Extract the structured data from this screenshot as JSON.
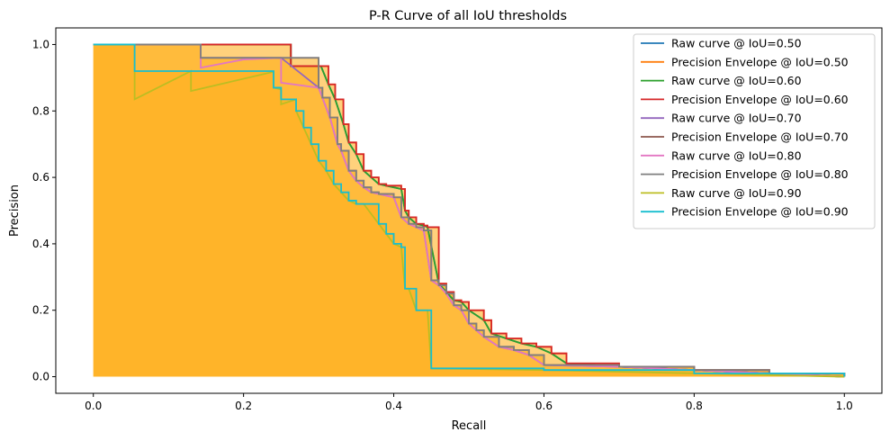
{
  "chart_data": {
    "type": "line",
    "title": "P-R Curve of all IoU thresholds",
    "xlabel": "Recall",
    "ylabel": "Precision",
    "xlim": [
      -0.05,
      1.05
    ],
    "ylim": [
      -0.05,
      1.05
    ],
    "xticks": [
      "0.0",
      "0.2",
      "0.4",
      "0.6",
      "0.8",
      "1.0"
    ],
    "yticks": [
      "0.0",
      "0.2",
      "0.4",
      "0.6",
      "0.8",
      "1.0"
    ],
    "grid": false,
    "legend_position": "top-right",
    "fill_color": "#ffa500",
    "series": [
      {
        "name": "Raw curve @ IoU=0.50",
        "color": "#1f77b4",
        "x": [
          0,
          0.143,
          0.263,
          0.263,
          0.303,
          0.313,
          0.322,
          0.333,
          0.34,
          0.35,
          0.36,
          0.37,
          0.38,
          0.39,
          0.41,
          0.415,
          0.42,
          0.43,
          0.44,
          0.445,
          0.46,
          0.47,
          0.48,
          0.49,
          0.5,
          0.52,
          0.53,
          0.55,
          0.57,
          0.59,
          0.61,
          0.63,
          0.7,
          0.8,
          0.9,
          1.0
        ],
        "y": [
          1.0,
          1.0,
          1.0,
          0.935,
          0.935,
          0.88,
          0.835,
          0.76,
          0.705,
          0.67,
          0.62,
          0.6,
          0.58,
          0.575,
          0.565,
          0.5,
          0.48,
          0.46,
          0.455,
          0.45,
          0.28,
          0.255,
          0.23,
          0.225,
          0.2,
          0.17,
          0.13,
          0.115,
          0.1,
          0.09,
          0.07,
          0.04,
          0.03,
          0.02,
          0.01,
          0.0
        ]
      },
      {
        "name": "Precision Envelope @ IoU=0.50",
        "color": "#ff7f0e",
        "x": [
          0,
          0.143,
          0.263,
          0.263,
          0.303,
          0.313,
          0.322,
          0.333,
          0.34,
          0.35,
          0.36,
          0.37,
          0.38,
          0.39,
          0.41,
          0.415,
          0.42,
          0.43,
          0.44,
          0.445,
          0.46,
          0.47,
          0.48,
          0.49,
          0.5,
          0.52,
          0.53,
          0.55,
          0.57,
          0.59,
          0.61,
          0.63,
          0.7,
          0.8,
          0.9,
          1.0
        ],
        "y": [
          1.0,
          1.0,
          1.0,
          0.935,
          0.935,
          0.88,
          0.835,
          0.76,
          0.705,
          0.67,
          0.62,
          0.6,
          0.58,
          0.575,
          0.565,
          0.5,
          0.48,
          0.46,
          0.455,
          0.45,
          0.28,
          0.255,
          0.23,
          0.225,
          0.2,
          0.17,
          0.13,
          0.115,
          0.1,
          0.09,
          0.07,
          0.04,
          0.03,
          0.02,
          0.01,
          0.0
        ]
      },
      {
        "name": "Raw curve @ IoU=0.60",
        "color": "#2ca02c",
        "x": [
          0,
          0.143,
          0.263,
          0.263,
          0.303,
          0.313,
          0.322,
          0.333,
          0.34,
          0.35,
          0.36,
          0.37,
          0.38,
          0.39,
          0.41,
          0.415,
          0.42,
          0.43,
          0.44,
          0.445,
          0.46,
          0.47,
          0.48,
          0.49,
          0.5,
          0.52,
          0.53,
          0.55,
          0.57,
          0.59,
          0.61,
          0.63,
          0.7,
          0.8,
          0.9,
          1.0
        ],
        "y": [
          1.0,
          1.0,
          1.0,
          0.935,
          0.935,
          0.88,
          0.835,
          0.76,
          0.705,
          0.67,
          0.62,
          0.6,
          0.58,
          0.575,
          0.565,
          0.5,
          0.48,
          0.46,
          0.455,
          0.45,
          0.28,
          0.255,
          0.23,
          0.225,
          0.2,
          0.17,
          0.13,
          0.115,
          0.1,
          0.09,
          0.07,
          0.04,
          0.03,
          0.02,
          0.01,
          0.0
        ]
      },
      {
        "name": "Precision Envelope @ IoU=0.60",
        "color": "#d62728",
        "x": [
          0,
          0.143,
          0.263,
          0.263,
          0.303,
          0.313,
          0.322,
          0.333,
          0.34,
          0.35,
          0.36,
          0.37,
          0.38,
          0.39,
          0.41,
          0.415,
          0.42,
          0.43,
          0.44,
          0.445,
          0.46,
          0.47,
          0.48,
          0.49,
          0.5,
          0.52,
          0.53,
          0.55,
          0.57,
          0.59,
          0.61,
          0.63,
          0.7,
          0.8,
          0.9,
          1.0
        ],
        "y": [
          1.0,
          1.0,
          1.0,
          0.935,
          0.935,
          0.88,
          0.835,
          0.76,
          0.705,
          0.67,
          0.62,
          0.6,
          0.58,
          0.575,
          0.565,
          0.5,
          0.48,
          0.46,
          0.455,
          0.45,
          0.28,
          0.255,
          0.23,
          0.225,
          0.2,
          0.17,
          0.13,
          0.115,
          0.1,
          0.09,
          0.07,
          0.04,
          0.03,
          0.02,
          0.01,
          0.0
        ]
      },
      {
        "name": "Raw curve @ IoU=0.70",
        "color": "#9467bd",
        "x": [
          0,
          0.143,
          0.143,
          0.25,
          0.25,
          0.3,
          0.305,
          0.315,
          0.325,
          0.33,
          0.34,
          0.35,
          0.36,
          0.37,
          0.38,
          0.4,
          0.41,
          0.42,
          0.43,
          0.44,
          0.45,
          0.46,
          0.47,
          0.48,
          0.49,
          0.5,
          0.51,
          0.52,
          0.54,
          0.56,
          0.58,
          0.6,
          0.7,
          0.8,
          0.9,
          1.0
        ],
        "y": [
          1.0,
          1.0,
          0.96,
          0.96,
          0.96,
          0.87,
          0.84,
          0.78,
          0.7,
          0.68,
          0.62,
          0.59,
          0.57,
          0.555,
          0.55,
          0.54,
          0.48,
          0.46,
          0.45,
          0.44,
          0.29,
          0.275,
          0.25,
          0.215,
          0.2,
          0.16,
          0.14,
          0.12,
          0.09,
          0.08,
          0.065,
          0.035,
          0.03,
          0.02,
          0.01,
          0.0
        ]
      },
      {
        "name": "Precision Envelope @ IoU=0.70",
        "color": "#8c564b",
        "x": [
          0,
          0.143,
          0.143,
          0.25,
          0.25,
          0.3,
          0.305,
          0.315,
          0.325,
          0.33,
          0.34,
          0.35,
          0.36,
          0.37,
          0.38,
          0.4,
          0.41,
          0.42,
          0.43,
          0.44,
          0.45,
          0.46,
          0.47,
          0.48,
          0.49,
          0.5,
          0.51,
          0.52,
          0.54,
          0.56,
          0.58,
          0.6,
          0.7,
          0.8,
          0.9,
          1.0
        ],
        "y": [
          1.0,
          1.0,
          0.96,
          0.96,
          0.96,
          0.87,
          0.84,
          0.78,
          0.7,
          0.68,
          0.62,
          0.59,
          0.57,
          0.555,
          0.55,
          0.54,
          0.48,
          0.46,
          0.45,
          0.44,
          0.29,
          0.275,
          0.25,
          0.215,
          0.2,
          0.16,
          0.14,
          0.12,
          0.09,
          0.08,
          0.065,
          0.035,
          0.03,
          0.02,
          0.01,
          0.0
        ]
      },
      {
        "name": "Raw curve @ IoU=0.80",
        "color": "#e377c2",
        "x": [
          0,
          0.143,
          0.143,
          0.2,
          0.25,
          0.25,
          0.3,
          0.305,
          0.315,
          0.325,
          0.33,
          0.34,
          0.35,
          0.36,
          0.37,
          0.38,
          0.4,
          0.41,
          0.42,
          0.43,
          0.44,
          0.45,
          0.46,
          0.47,
          0.48,
          0.49,
          0.5,
          0.51,
          0.52,
          0.54,
          0.56,
          0.58,
          0.6,
          0.7,
          0.8,
          0.9,
          1.0
        ],
        "y": [
          1.0,
          1.0,
          0.93,
          0.955,
          0.96,
          0.885,
          0.87,
          0.84,
          0.78,
          0.7,
          0.68,
          0.62,
          0.59,
          0.57,
          0.555,
          0.55,
          0.54,
          0.48,
          0.46,
          0.45,
          0.44,
          0.29,
          0.275,
          0.25,
          0.215,
          0.2,
          0.16,
          0.14,
          0.12,
          0.09,
          0.08,
          0.065,
          0.035,
          0.03,
          0.02,
          0.01,
          0.0
        ]
      },
      {
        "name": "Precision Envelope @ IoU=0.80",
        "color": "#7f7f7f",
        "x": [
          0,
          0.143,
          0.143,
          0.25,
          0.25,
          0.3,
          0.305,
          0.315,
          0.325,
          0.33,
          0.34,
          0.35,
          0.36,
          0.37,
          0.38,
          0.4,
          0.41,
          0.42,
          0.43,
          0.44,
          0.45,
          0.46,
          0.47,
          0.48,
          0.49,
          0.5,
          0.51,
          0.52,
          0.54,
          0.56,
          0.58,
          0.6,
          0.7,
          0.8,
          0.9,
          1.0
        ],
        "y": [
          1.0,
          1.0,
          0.96,
          0.96,
          0.96,
          0.87,
          0.84,
          0.78,
          0.7,
          0.68,
          0.62,
          0.59,
          0.57,
          0.555,
          0.55,
          0.54,
          0.48,
          0.46,
          0.45,
          0.44,
          0.29,
          0.275,
          0.25,
          0.215,
          0.2,
          0.16,
          0.14,
          0.12,
          0.09,
          0.08,
          0.065,
          0.035,
          0.03,
          0.02,
          0.01,
          0.0
        ]
      },
      {
        "name": "Raw curve @ IoU=0.90",
        "color": "#bcbd22",
        "x": [
          0,
          0.055,
          0.055,
          0.13,
          0.13,
          0.24,
          0.24,
          0.25,
          0.25,
          0.27,
          0.27,
          0.28,
          0.29,
          0.3,
          0.31,
          0.32,
          0.33,
          0.34,
          0.35,
          0.36,
          0.38,
          0.39,
          0.4,
          0.41,
          0.415,
          0.42,
          0.43,
          0.445,
          0.45,
          0.6,
          0.8,
          1.0
        ],
        "y": [
          1.0,
          1.0,
          0.835,
          0.92,
          0.86,
          0.918,
          0.87,
          0.865,
          0.82,
          0.835,
          0.8,
          0.75,
          0.7,
          0.65,
          0.62,
          0.58,
          0.555,
          0.53,
          0.52,
          0.52,
          0.46,
          0.43,
          0.4,
          0.39,
          0.265,
          0.265,
          0.2,
          0.2,
          0.025,
          0.02,
          0.01,
          0.0
        ]
      },
      {
        "name": "Precision Envelope @ IoU=0.90",
        "color": "#17becf",
        "x": [
          0,
          0.055,
          0.055,
          0.24,
          0.24,
          0.25,
          0.25,
          0.27,
          0.27,
          0.28,
          0.29,
          0.3,
          0.31,
          0.32,
          0.33,
          0.34,
          0.35,
          0.36,
          0.38,
          0.39,
          0.4,
          0.41,
          0.415,
          0.42,
          0.43,
          0.445,
          0.45,
          0.6,
          0.8,
          1.0
        ],
        "y": [
          1.0,
          1.0,
          0.92,
          0.92,
          0.87,
          0.87,
          0.835,
          0.835,
          0.8,
          0.75,
          0.7,
          0.65,
          0.62,
          0.58,
          0.555,
          0.53,
          0.52,
          0.52,
          0.46,
          0.43,
          0.4,
          0.39,
          0.265,
          0.265,
          0.2,
          0.2,
          0.025,
          0.02,
          0.01,
          0.0
        ]
      }
    ]
  }
}
